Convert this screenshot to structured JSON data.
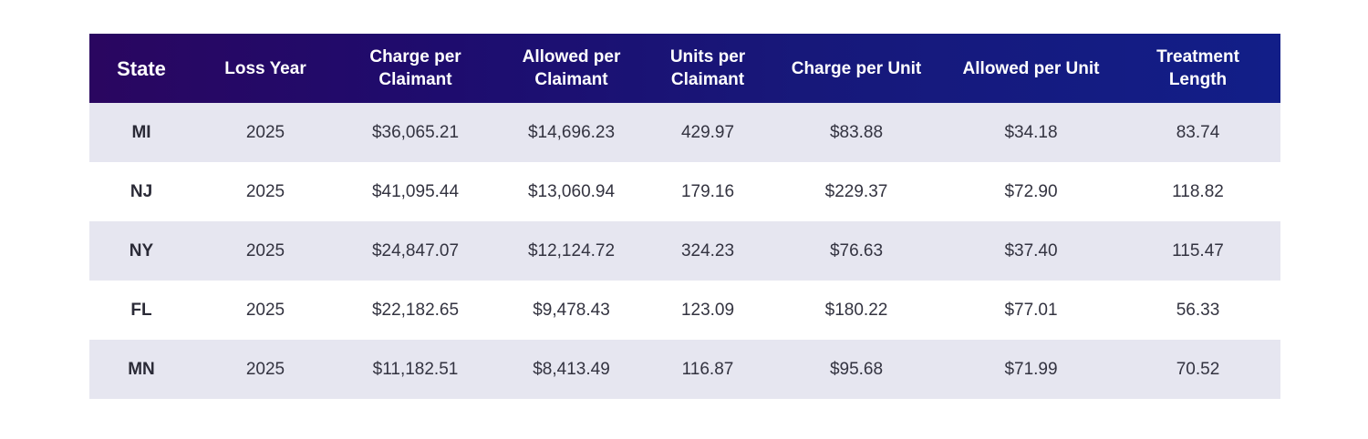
{
  "chart_data": {
    "type": "table",
    "columns": [
      "State",
      "Loss Year",
      "Charge per Claimant",
      "Allowed per Claimant",
      "Units per Claimant",
      "Charge per Unit",
      "Allowed per Unit",
      "Treatment Length"
    ],
    "rows": [
      [
        "MI",
        "2025",
        "$36,065.21",
        "$14,696.23",
        "429.97",
        "$83.88",
        "$34.18",
        "83.74"
      ],
      [
        "NJ",
        "2025",
        "$41,095.44",
        "$13,060.94",
        "179.16",
        "$229.37",
        "$72.90",
        "118.82"
      ],
      [
        "NY",
        "2025",
        "$24,847.07",
        "$12,124.72",
        "324.23",
        "$76.63",
        "$37.40",
        "115.47"
      ],
      [
        "FL",
        "2025",
        "$22,182.65",
        "$9,478.43",
        "123.09",
        "$180.22",
        "$77.01",
        "56.33"
      ],
      [
        "MN",
        "2025",
        "$11,182.51",
        "$8,413.49",
        "116.87",
        "$95.68",
        "$71.99",
        "70.52"
      ]
    ]
  },
  "colors": {
    "header_gradient_start": "#2a0660",
    "header_gradient_end": "#121e88",
    "row_shade": "#e6e6f0",
    "row_plain": "#ffffff"
  }
}
